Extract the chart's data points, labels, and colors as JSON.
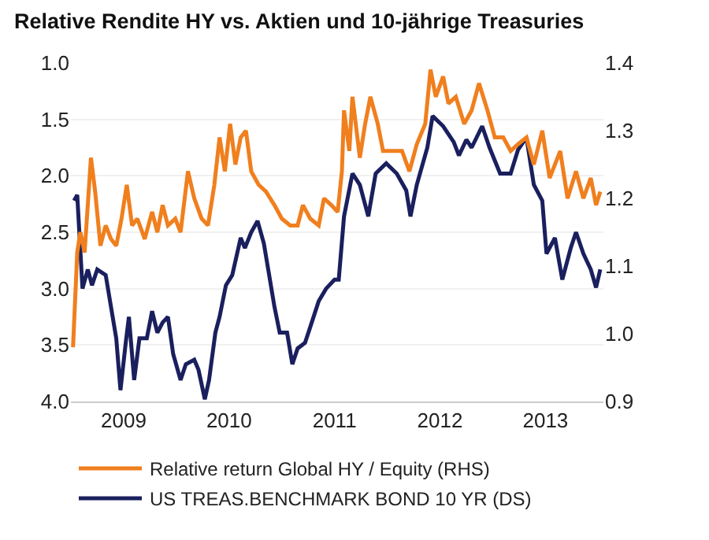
{
  "chart_data": {
    "type": "line",
    "title": "Relative Rendite HY vs. Aktien und 10-jährige Treasuries",
    "xlim": [
      2009.0,
      2014.05
    ],
    "xticks": [
      {
        "value": 2009.5,
        "label": "2009"
      },
      {
        "value": 2010.5,
        "label": "2010"
      },
      {
        "value": 2011.5,
        "label": "2011"
      },
      {
        "value": 2012.5,
        "label": "2012"
      },
      {
        "value": 2013.5,
        "label": "2013"
      }
    ],
    "ylim": [
      4.0,
      1.0
    ],
    "yticks": [
      {
        "value": 1,
        "label": "1.0"
      },
      1.5,
      {
        "value": 2,
        "label": "2.0"
      },
      2.5,
      {
        "value": 3,
        "label": "3.0"
      },
      3.5,
      {
        "value": 4,
        "label": "4.0"
      }
    ],
    "y2lim": [
      0.9,
      1.4
    ],
    "y2ticks": [
      0.9,
      {
        "value": 1,
        "label": "1.0"
      },
      1.1,
      1.2,
      1.3,
      1.4
    ],
    "grid": "y",
    "legend": "bottom",
    "series": [
      {
        "name": "Relative return Global HY / Equity (RHS)",
        "color": "#f07f1e",
        "axis": "y2",
        "x": [
          2009.02,
          2009.06,
          2009.09,
          2009.13,
          2009.19,
          2009.23,
          2009.28,
          2009.33,
          2009.38,
          2009.43,
          2009.48,
          2009.53,
          2009.58,
          2009.63,
          2009.7,
          2009.77,
          2009.82,
          2009.87,
          2009.92,
          2009.99,
          2010.04,
          2010.11,
          2010.17,
          2010.24,
          2010.3,
          2010.36,
          2010.41,
          2010.46,
          2010.51,
          2010.56,
          2010.61,
          2010.66,
          2010.71,
          2010.78,
          2010.85,
          2010.93,
          2011.0,
          2011.08,
          2011.15,
          2011.2,
          2011.27,
          2011.35,
          2011.4,
          2011.47,
          2011.53,
          2011.57,
          2011.59,
          2011.64,
          2011.67,
          2011.74,
          2011.79,
          2011.84,
          2011.91,
          2011.96,
          2012.04,
          2012.14,
          2012.21,
          2012.28,
          2012.36,
          2012.41,
          2012.46,
          2012.53,
          2012.58,
          2012.65,
          2012.73,
          2012.8,
          2012.87,
          2012.95,
          2013.02,
          2013.1,
          2013.17,
          2013.24,
          2013.32,
          2013.39,
          2013.47,
          2013.54,
          2013.64,
          2013.71,
          2013.79,
          2013.86,
          2013.93,
          2013.98,
          2014.02
        ],
        "values": [
          0.98,
          1.12,
          1.15,
          1.12,
          1.26,
          1.21,
          1.13,
          1.16,
          1.14,
          1.13,
          1.17,
          1.22,
          1.16,
          1.17,
          1.14,
          1.18,
          1.15,
          1.19,
          1.16,
          1.17,
          1.15,
          1.24,
          1.2,
          1.17,
          1.16,
          1.22,
          1.29,
          1.24,
          1.31,
          1.25,
          1.29,
          1.3,
          1.24,
          1.22,
          1.21,
          1.19,
          1.17,
          1.16,
          1.16,
          1.19,
          1.17,
          1.16,
          1.2,
          1.19,
          1.18,
          1.24,
          1.33,
          1.27,
          1.35,
          1.26,
          1.31,
          1.35,
          1.31,
          1.27,
          1.27,
          1.27,
          1.24,
          1.28,
          1.31,
          1.39,
          1.35,
          1.38,
          1.34,
          1.35,
          1.31,
          1.33,
          1.37,
          1.33,
          1.29,
          1.29,
          1.27,
          1.28,
          1.29,
          1.25,
          1.3,
          1.23,
          1.27,
          1.2,
          1.24,
          1.2,
          1.23,
          1.19,
          1.21
        ]
      },
      {
        "name": "US TREAS.BENCHMARK BOND 10 YR (DS)",
        "color": "#1a1f5e",
        "axis": "y",
        "x": [
          2009.03,
          2009.06,
          2009.08,
          2009.11,
          2009.16,
          2009.2,
          2009.25,
          2009.33,
          2009.38,
          2009.43,
          2009.47,
          2009.52,
          2009.55,
          2009.6,
          2009.65,
          2009.72,
          2009.77,
          2009.82,
          2009.87,
          2009.92,
          2009.97,
          2010.04,
          2010.09,
          2010.17,
          2010.21,
          2010.27,
          2010.31,
          2010.37,
          2010.41,
          2010.47,
          2010.53,
          2010.61,
          2010.65,
          2010.71,
          2010.77,
          2010.83,
          2010.88,
          2010.93,
          2010.98,
          2011.05,
          2011.1,
          2011.15,
          2011.22,
          2011.27,
          2011.35,
          2011.42,
          2011.5,
          2011.54,
          2011.59,
          2011.67,
          2011.74,
          2011.82,
          2011.89,
          2011.99,
          2012.09,
          2012.18,
          2012.22,
          2012.28,
          2012.38,
          2012.43,
          2012.53,
          2012.63,
          2012.68,
          2012.75,
          2012.8,
          2012.9,
          2012.97,
          2013.07,
          2013.17,
          2013.24,
          2013.32,
          2013.39,
          2013.47,
          2013.51,
          2013.59,
          2013.66,
          2013.74,
          2013.79,
          2013.86,
          2013.93,
          2013.98,
          2014.02
        ],
        "values": [
          2.22,
          2.17,
          2.5,
          3.0,
          2.83,
          2.97,
          2.83,
          2.88,
          3.16,
          3.44,
          3.9,
          3.48,
          3.25,
          3.81,
          3.44,
          3.44,
          3.2,
          3.39,
          3.3,
          3.25,
          3.58,
          3.81,
          3.67,
          3.63,
          3.72,
          3.98,
          3.81,
          3.39,
          3.25,
          2.97,
          2.88,
          2.55,
          2.64,
          2.5,
          2.4,
          2.6,
          2.88,
          3.16,
          3.39,
          3.39,
          3.67,
          3.53,
          3.48,
          3.34,
          3.11,
          3.0,
          2.92,
          2.92,
          2.36,
          1.98,
          2.08,
          2.36,
          1.98,
          1.89,
          1.98,
          2.13,
          2.36,
          2.08,
          1.75,
          1.47,
          1.56,
          1.7,
          1.82,
          1.68,
          1.75,
          1.56,
          1.75,
          1.98,
          1.98,
          1.77,
          1.66,
          2.08,
          2.22,
          2.69,
          2.55,
          2.92,
          2.64,
          2.5,
          2.69,
          2.83,
          2.99,
          2.83
        ]
      }
    ]
  }
}
